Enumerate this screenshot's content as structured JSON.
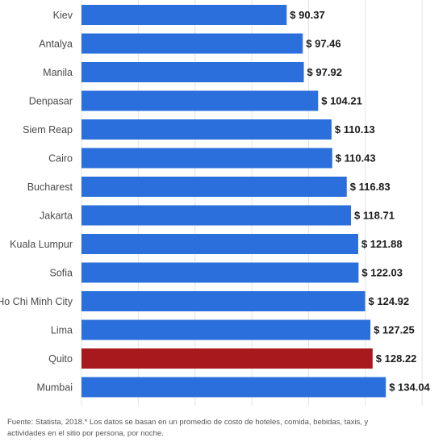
{
  "chart_data": {
    "type": "bar",
    "orientation": "horizontal",
    "categories": [
      "Kiev",
      "Antalya",
      "Manila",
      "Denpasar",
      "Siem Reap",
      "Cairo",
      "Bucharest",
      "Jakarta",
      "Kuala Lumpur",
      "Sofia",
      "Ho Chi Minh City",
      "Lima",
      "Quito",
      "Mumbai"
    ],
    "values": [
      90.37,
      97.46,
      97.92,
      104.21,
      110.13,
      110.43,
      116.83,
      118.71,
      121.88,
      122.03,
      124.92,
      127.25,
      128.22,
      134.04
    ],
    "value_labels": [
      "$ 90.37",
      "$ 97.46",
      "$ 97.92",
      "$ 104.21",
      "$ 110.13",
      "$ 110.43",
      "$ 116.83",
      "$ 118.71",
      "$ 121.88",
      "$ 122.03",
      "$ 124.92",
      "$ 127.25",
      "$ 128.22",
      "$ 134.04"
    ],
    "highlight_category": "Quito",
    "xlim": [
      0,
      150
    ],
    "grid": true,
    "bar_color": "#2a6fdb",
    "highlight_color": "#a8191d",
    "title": "",
    "xlabel": "",
    "ylabel": ""
  },
  "footnote": "Fuente: Statista, 2018.* Los datos se basan en un promedio de costo de hoteles, comida, bebidas, taxis, y actividades en el sitio por persona, por noche."
}
